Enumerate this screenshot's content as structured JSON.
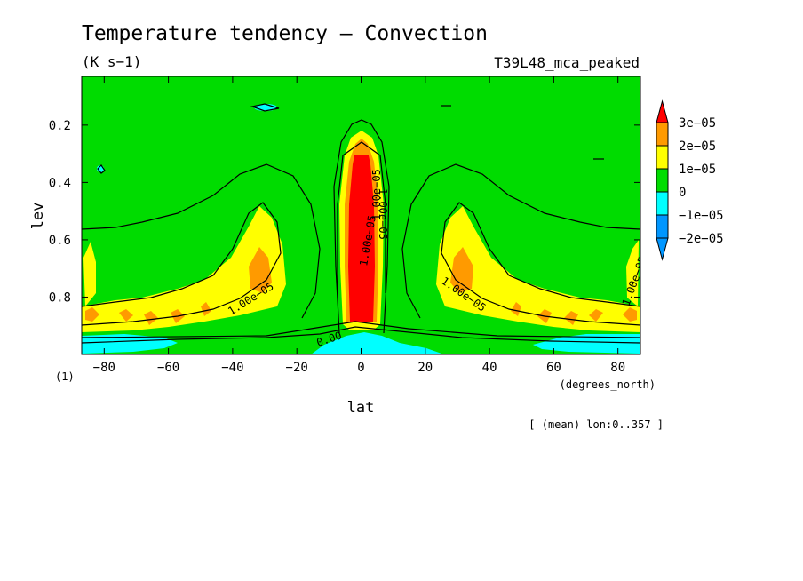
{
  "chart_data": {
    "type": "contour",
    "title": "Temperature tendency — Convection",
    "units": "(K s−1)",
    "experiment": "T39L48_mca_peaked",
    "xlabel": "lat",
    "xunits": "(degrees_north)",
    "ylabel": "lev",
    "yunits": "(1)",
    "footer": "[ (mean) lon:0..357 ]",
    "xlim": [
      -87,
      87
    ],
    "ylim": [
      1.0,
      0.03
    ],
    "x_ticks": [
      -80,
      -60,
      -40,
      -20,
      0,
      20,
      40,
      60,
      80
    ],
    "x_tick_labels": [
      "−80",
      "−60",
      "−40",
      "−20",
      "0",
      "20",
      "40",
      "60",
      "80"
    ],
    "y_ticks": [
      0.2,
      0.4,
      0.6,
      0.8
    ],
    "y_tick_labels": [
      "0.2",
      "0.4",
      "0.6",
      "0.8"
    ],
    "colorbar": {
      "levels": [
        {
          "label": "3e−05",
          "color": "#ff0000"
        },
        {
          "label": "2e−05",
          "color": "#ff9a00"
        },
        {
          "label": "1e−05",
          "color": "#ffff00"
        },
        {
          "label": "0",
          "color": "#00dc00"
        },
        {
          "label": "−1e−05",
          "color": "#00ffff"
        },
        {
          "label": "−2e−05",
          "color": "#0096ff"
        }
      ],
      "top_color": "#ff0000",
      "bottom_color": "#0096ff"
    },
    "contour_labels": [
      "1.00e−05",
      "1.00e−05",
      "0.00",
      "1.00e−05",
      "1.00e−05",
      "1.00e−05",
      "1.00e−05"
    ]
  },
  "colors": {
    "zero": "#00dc00",
    "pos1": "#ffff00",
    "pos2": "#ff9a00",
    "pos3": "#ff0000",
    "neg1": "#00ffff",
    "neg2": "#0096ff"
  }
}
